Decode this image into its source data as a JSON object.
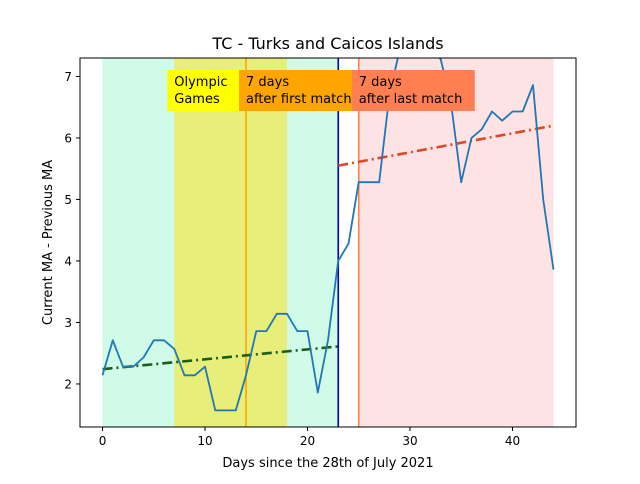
{
  "chart_data": {
    "type": "line",
    "title": "TC - Turks and Caicos Islands",
    "xlabel": "Days since the 28th of July 2021",
    "ylabel": "Current MA - Previous MA",
    "xlim": [
      -2.2,
      46.2
    ],
    "ylim": [
      1.3,
      7.3
    ],
    "x_ticks": [
      0,
      10,
      20,
      30,
      40
    ],
    "y_ticks": [
      2,
      3,
      4,
      5,
      6,
      7
    ],
    "grid": false,
    "series": [
      {
        "color": "#1f77b4",
        "x": [
          0,
          1,
          2,
          3,
          4,
          5,
          6,
          7,
          8,
          9,
          10,
          11,
          12,
          13,
          14,
          15,
          16,
          17,
          18,
          19,
          20,
          21,
          22,
          23,
          24,
          25,
          26,
          27,
          28,
          29,
          30,
          31,
          32,
          33,
          34,
          35,
          36,
          37,
          38,
          39,
          40,
          41,
          42,
          43,
          44
        ],
        "values": [
          2.14,
          2.71,
          2.28,
          2.28,
          2.43,
          2.71,
          2.71,
          2.57,
          2.14,
          2.14,
          2.28,
          1.57,
          1.57,
          1.57,
          2.14,
          2.86,
          2.86,
          3.14,
          3.14,
          2.86,
          2.86,
          1.86,
          2.71,
          4.0,
          4.28,
          5.28,
          5.28,
          5.28,
          6.71,
          7.43,
          7.43,
          7.43,
          7.43,
          7.28,
          6.57,
          5.28,
          6.0,
          6.14,
          6.43,
          6.28,
          6.43,
          6.43,
          6.86,
          5.0,
          3.86
        ]
      }
    ],
    "trend_lines": [
      {
        "color": "#1a5e1a",
        "x": [
          0,
          23
        ],
        "y": [
          2.24,
          2.61
        ]
      },
      {
        "color": "#d84a2a",
        "x": [
          23,
          44
        ],
        "y": [
          5.55,
          6.2
        ]
      }
    ],
    "shaded_regions": [
      {
        "x0": 0,
        "x1": 23,
        "color": "#d0fbe9"
      },
      {
        "x0": 7,
        "x1": 18,
        "color": "#e8ee7a"
      },
      {
        "x0": 25,
        "x1": 44,
        "color": "#fde3e3"
      }
    ],
    "vertical_lines": [
      {
        "x": 14,
        "color": "#ffa500"
      },
      {
        "x": 23,
        "color": "#0000cc"
      },
      {
        "x": 25,
        "color": "#ff7f50"
      }
    ],
    "annotations": [
      {
        "lines": [
          "Olympic",
          "Games"
        ],
        "x": 7,
        "y": 7.05,
        "bg": "#ffff00"
      },
      {
        "lines": [
          "7 days",
          "after first match"
        ],
        "x": 14,
        "y": 7.05,
        "bg": "#ffa500"
      },
      {
        "lines": [
          "7 days",
          "after last match"
        ],
        "x": 25,
        "y": 7.05,
        "bg": "#ff7f50"
      }
    ]
  }
}
